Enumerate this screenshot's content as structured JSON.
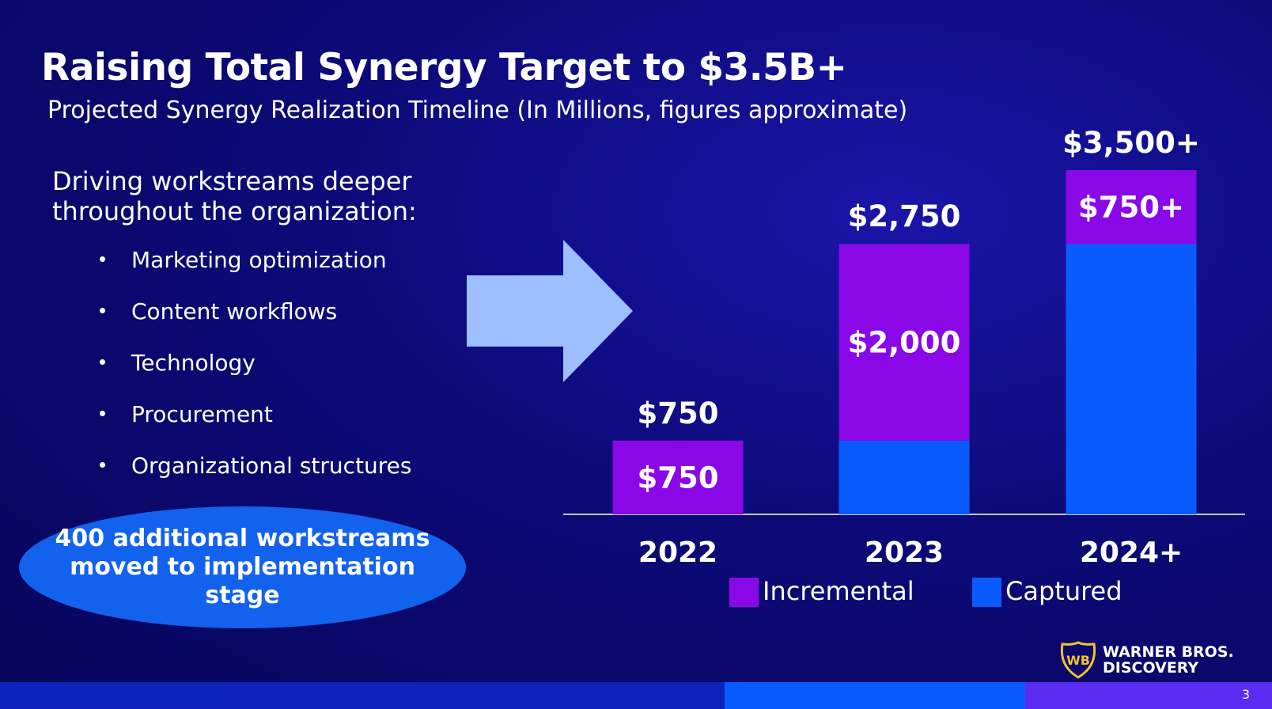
{
  "slide": {
    "title": "Raising Total Synergy Target to $3.5B+",
    "subtitle": "Projected Synergy Realization Timeline (In Millions, figures approximate)",
    "intro": "Driving workstreams deeper throughout the organization:",
    "bullets": [
      "Marketing optimization",
      "Content workflows",
      "Technology",
      "Procurement",
      "Organizational structures"
    ],
    "callout": "400 additional workstreams moved to implementation stage",
    "logo": "WARNER BROS. DISCOVERY",
    "page_number": "3"
  },
  "colors": {
    "incremental": "#8a07e8",
    "captured": "#0a5bff",
    "arrow": "#9dbfff",
    "callout": "#1262ee"
  },
  "chart_data": {
    "type": "bar",
    "stacked": true,
    "categories": [
      "2022",
      "2023",
      "2024+"
    ],
    "series": [
      {
        "name": "Captured",
        "values": [
          0,
          750,
          2750
        ]
      },
      {
        "name": "Incremental",
        "values": [
          750,
          2000,
          750
        ]
      }
    ],
    "segment_labels": {
      "Captured": [
        "",
        "",
        ""
      ],
      "Incremental": [
        "$750",
        "$2,000",
        "$750+"
      ]
    },
    "total_labels": [
      "$750",
      "$2,750",
      "$3,500+"
    ],
    "ylim": [
      0,
      3500
    ],
    "legend": [
      "Incremental",
      "Captured"
    ],
    "legend_position": "bottom",
    "grid": false
  }
}
